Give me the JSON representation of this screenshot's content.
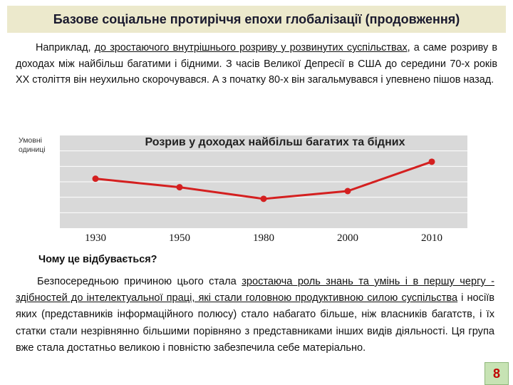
{
  "slide": {
    "title": "Базове соціальне протиріччя епохи глобалізації (продовження)",
    "intro": {
      "part1": "Наприклад, ",
      "underlined": "до зростаючого внутрішнього розриву у розвинутих суспільствах",
      "part2": ", а саме розриву в доходах між найбільш багатими і бідними. З часів Великої Депресії в США до середини 70-х років ХХ століття він неухильно скорочувався. А з початку 80-х він загальмувався і упевнено пішов назад."
    },
    "question": "Чому це відбувається?",
    "answer": {
      "p1": "Безпосередньою причиною цього стала ",
      "u1": "зростаюча роль знань та умінь і в першу чергу - здібностей до інтелектуальної праці, які стали головною продуктивною силою суспільства",
      "p2": " і носіїв яких (представників інформаційного полюсу) стало набагато більше, ніж власників багатств, і їх статки стали незрівнянно більшими порівняно з представниками інших видів діяльності. Ця група вже стала достатньо великою і повністю забезпечила себе матеріально."
    },
    "page_number": "8"
  },
  "chart_data": {
    "type": "line",
    "title": "Розрив у доходах найбільш багатих та бідних",
    "ylabel": "Умовні одиниці",
    "xlabel": "",
    "categories": [
      "1930",
      "1950",
      "1980",
      "2000",
      "2010"
    ],
    "series": [
      {
        "values": [
          3.2,
          2.65,
          1.9,
          2.4,
          4.3
        ]
      }
    ],
    "ylim": [
      0,
      6
    ],
    "grid": true,
    "legend": "none",
    "colors": {
      "line": "#d42020",
      "plot_bg": "#d9d9d9",
      "grid": "#ffffff"
    }
  }
}
